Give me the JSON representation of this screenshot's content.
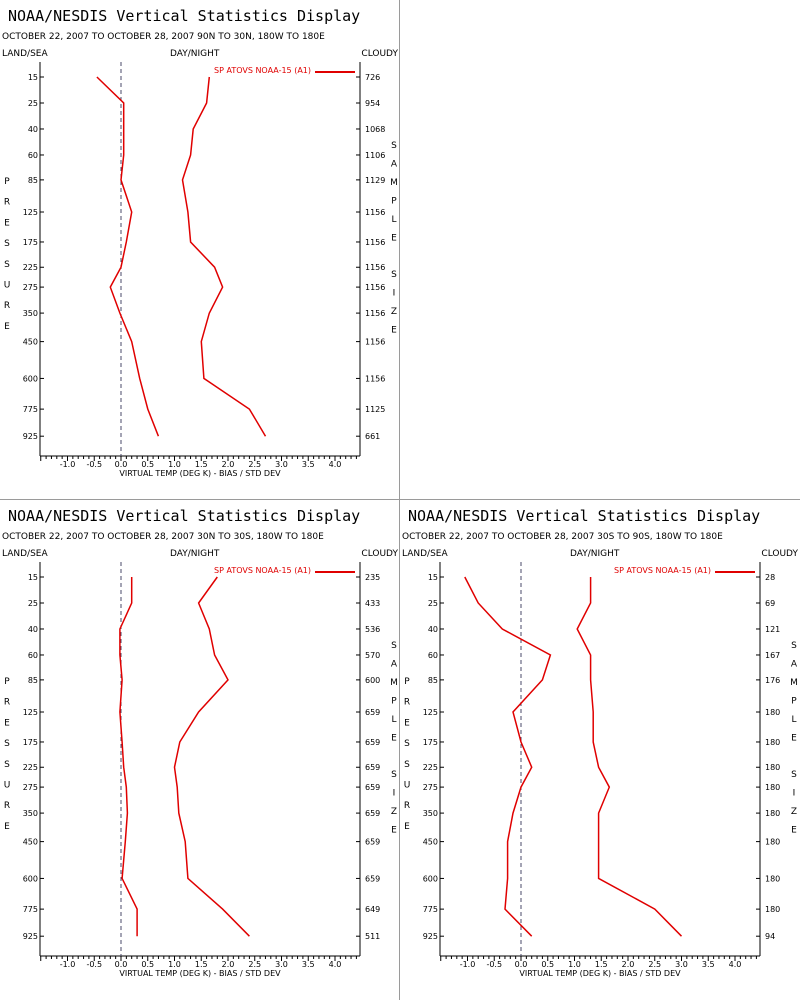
{
  "panels": [
    {
      "title": "NOAA/NESDIS Vertical Statistics Display",
      "subtitle": "OCTOBER 22, 2007 TO OCTOBER 28, 2007 90N TO 30N, 180W TO 180E",
      "header_left": "LAND/SEA",
      "header_center": "DAY/NIGHT",
      "header_right": "CLOUDY",
      "left_vertical_label": "PRESSURE",
      "right_vertical_label": "SAMPLE SIZE",
      "legend_label": "SP ATOVS NOAA-15 (A1)"
    },
    {
      "title": "NOAA/NESDIS Vertical Statistics Display",
      "subtitle": "OCTOBER 22, 2007 TO OCTOBER 28, 2007 30N TO 30S, 180W TO 180E",
      "header_left": "LAND/SEA",
      "header_center": "DAY/NIGHT",
      "header_right": "CLOUDY",
      "left_vertical_label": "PRESSURE",
      "right_vertical_label": "SAMPLE SIZE",
      "legend_label": "SP ATOVS NOAA-15 (A1)"
    },
    {
      "title": "NOAA/NESDIS Vertical Statistics Display",
      "subtitle": "OCTOBER 22, 2007 TO OCTOBER 28, 2007 30S TO 90S, 180W TO 180E",
      "header_left": "LAND/SEA",
      "header_center": "DAY/NIGHT",
      "header_right": "CLOUDY",
      "left_vertical_label": "PRESSURE",
      "right_vertical_label": "SAMPLE SIZE",
      "legend_label": "SP ATOVS NOAA-15 (A1)"
    }
  ],
  "chart_data": [
    {
      "type": "line",
      "xlabel": "VIRTUAL TEMP (DEG K) - BIAS / STD DEV",
      "xlim": [
        -1.5,
        4.5
      ],
      "x_ticks": [
        "-1.0",
        "-0.5",
        "0.0",
        "0.5",
        "1.0",
        "1.5",
        "2.0",
        "2.5",
        "3.0",
        "3.5",
        "4.0"
      ],
      "pressure_levels": [
        "15",
        "25",
        "40",
        "60",
        "85",
        "125",
        "175",
        "225",
        "275",
        "350",
        "450",
        "600",
        "775",
        "925"
      ],
      "sample_size": [
        "726",
        "954",
        "1068",
        "1106",
        "1129",
        "1156",
        "1156",
        "1156",
        "1156",
        "1156",
        "1156",
        "1156",
        "1125",
        "661"
      ],
      "series": [
        {
          "name": "SP ATOVS NOAA-15 (A1)",
          "role": "bias",
          "color": "#e00000",
          "values": [
            -0.45,
            0.05,
            0.05,
            0.05,
            0.0,
            0.2,
            0.1,
            0.0,
            -0.2,
            -0.02,
            0.2,
            0.35,
            0.5,
            0.7
          ]
        },
        {
          "name": "SP ATOVS NOAA-15 (A1)",
          "role": "std_dev",
          "color": "#e00000",
          "values": [
            1.65,
            1.6,
            1.35,
            1.3,
            1.15,
            1.25,
            1.3,
            1.75,
            1.9,
            1.65,
            1.5,
            1.55,
            2.4,
            2.7
          ]
        }
      ]
    },
    {
      "type": "line",
      "xlabel": "VIRTUAL TEMP (DEG K) - BIAS / STD DEV",
      "xlim": [
        -1.5,
        4.5
      ],
      "x_ticks": [
        "-1.0",
        "-0.5",
        "0.0",
        "0.5",
        "1.0",
        "1.5",
        "2.0",
        "2.5",
        "3.0",
        "3.5",
        "4.0"
      ],
      "pressure_levels": [
        "15",
        "25",
        "40",
        "60",
        "85",
        "125",
        "175",
        "225",
        "275",
        "350",
        "450",
        "600",
        "775",
        "925"
      ],
      "sample_size": [
        "235",
        "433",
        "536",
        "570",
        "600",
        "659",
        "659",
        "659",
        "659",
        "659",
        "659",
        "659",
        "649",
        "511"
      ],
      "series": [
        {
          "name": "SP ATOVS NOAA-15 (A1)",
          "role": "bias",
          "color": "#e00000",
          "values": [
            0.2,
            0.2,
            -0.02,
            -0.02,
            0.02,
            -0.02,
            0.02,
            0.05,
            0.1,
            0.12,
            0.08,
            0.02,
            0.3,
            0.3
          ]
        },
        {
          "name": "SP ATOVS NOAA-15 (A1)",
          "role": "std_dev",
          "color": "#e00000",
          "values": [
            1.8,
            1.45,
            1.65,
            1.75,
            2.0,
            1.45,
            1.1,
            1.0,
            1.05,
            1.08,
            1.2,
            1.25,
            1.9,
            2.4
          ]
        }
      ]
    },
    {
      "type": "line",
      "xlabel": "VIRTUAL TEMP (DEG K) - BIAS / STD DEV",
      "xlim": [
        -1.5,
        4.5
      ],
      "x_ticks": [
        "-1.0",
        "-0.5",
        "0.0",
        "0.5",
        "1.0",
        "1.5",
        "2.0",
        "2.5",
        "3.0",
        "3.5",
        "4.0"
      ],
      "pressure_levels": [
        "15",
        "25",
        "40",
        "60",
        "85",
        "125",
        "175",
        "225",
        "275",
        "350",
        "450",
        "600",
        "775",
        "925"
      ],
      "sample_size": [
        "28",
        "69",
        "121",
        "167",
        "176",
        "180",
        "180",
        "180",
        "180",
        "180",
        "180",
        "180",
        "180",
        "94"
      ],
      "series": [
        {
          "name": "SP ATOVS NOAA-15 (A1)",
          "role": "bias",
          "color": "#e00000",
          "values": [
            -1.05,
            -0.8,
            -0.35,
            0.55,
            0.4,
            -0.15,
            0.0,
            0.2,
            0.0,
            -0.15,
            -0.25,
            -0.25,
            -0.3,
            0.2
          ]
        },
        {
          "name": "SP ATOVS NOAA-15 (A1)",
          "role": "std_dev",
          "color": "#e00000",
          "values": [
            1.3,
            1.3,
            1.05,
            1.3,
            1.3,
            1.35,
            1.35,
            1.45,
            1.65,
            1.45,
            1.45,
            1.45,
            2.5,
            3.0
          ]
        }
      ]
    }
  ]
}
